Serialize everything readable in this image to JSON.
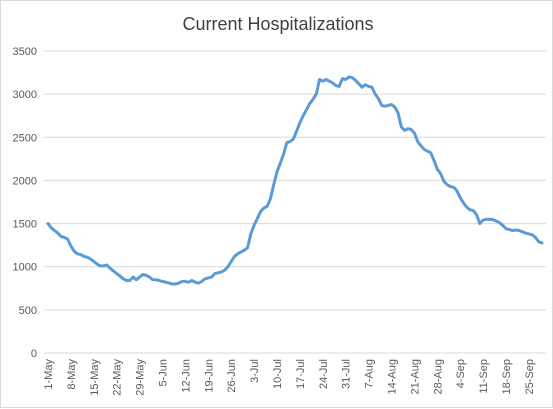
{
  "chart_data": {
    "type": "line",
    "title": "Current Hospitalizations",
    "xlabel": "",
    "ylabel": "",
    "ylim": [
      0,
      3500
    ],
    "yticks": [
      0,
      500,
      1000,
      1500,
      2000,
      2500,
      3000,
      3500
    ],
    "grid": "horizontal",
    "legend": "none",
    "x_tick_labels": [
      "1-May",
      "8-May",
      "15-May",
      "22-May",
      "29-May",
      "5-Jun",
      "12-Jun",
      "19-Jun",
      "26-Jun",
      "3-Jul",
      "10-Jul",
      "17-Jul",
      "24-Jul",
      "31-Jul",
      "7-Aug",
      "14-Aug",
      "21-Aug",
      "28-Aug",
      "4-Sep",
      "11-Sep",
      "18-Sep",
      "25-Sep"
    ],
    "start_date": "1-May",
    "series": [
      {
        "name": "",
        "color": "#5b9bd5",
        "values": [
          1500,
          1450,
          1420,
          1390,
          1350,
          1340,
          1320,
          1240,
          1180,
          1150,
          1140,
          1120,
          1110,
          1090,
          1060,
          1030,
          1010,
          1010,
          1020,
          980,
          950,
          920,
          890,
          860,
          840,
          840,
          880,
          850,
          880,
          910,
          900,
          880,
          850,
          850,
          840,
          830,
          820,
          810,
          800,
          800,
          810,
          830,
          830,
          820,
          840,
          820,
          810,
          830,
          860,
          870,
          880,
          920,
          930,
          940,
          960,
          1000,
          1060,
          1120,
          1150,
          1170,
          1190,
          1220,
          1380,
          1480,
          1560,
          1640,
          1680,
          1700,
          1790,
          1950,
          2100,
          2200,
          2300,
          2440,
          2450,
          2480,
          2570,
          2670,
          2750,
          2820,
          2890,
          2940,
          3000,
          3170,
          3150,
          3170,
          3150,
          3130,
          3100,
          3090,
          3180,
          3170,
          3200,
          3190,
          3160,
          3120,
          3080,
          3110,
          3090,
          3080,
          3000,
          2950,
          2870,
          2860,
          2870,
          2880,
          2850,
          2780,
          2620,
          2580,
          2600,
          2590,
          2550,
          2450,
          2400,
          2360,
          2340,
          2320,
          2230,
          2130,
          2080,
          1990,
          1950,
          1930,
          1920,
          1880,
          1800,
          1740,
          1690,
          1660,
          1650,
          1600,
          1500,
          1540,
          1550,
          1550,
          1545,
          1530,
          1510,
          1480,
          1440,
          1430,
          1420,
          1425,
          1420,
          1405,
          1390,
          1380,
          1370,
          1340,
          1290,
          1275
        ]
      }
    ]
  }
}
